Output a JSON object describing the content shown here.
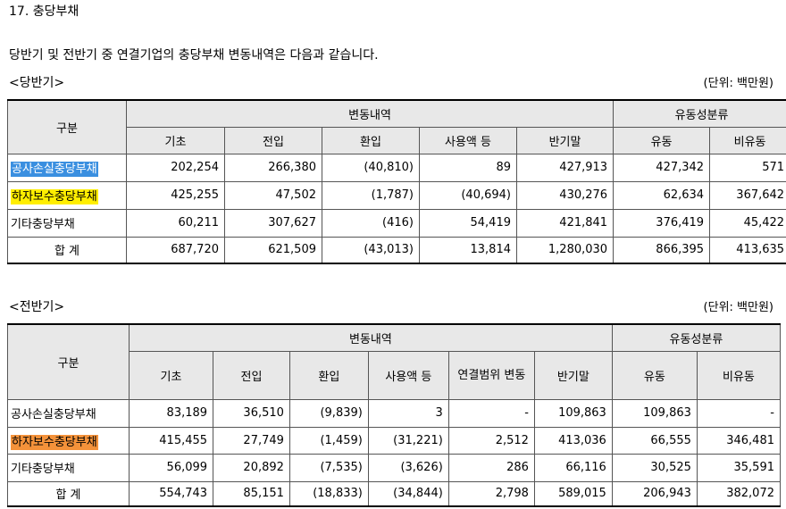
{
  "section_title": "17. 충당부채",
  "intro": "당반기 및 전반기 중 연결기업의 충당부채 변동내역은 다음과 같습니다.",
  "current": {
    "label": "<당반기>",
    "unit": "(단위: 백만원)",
    "headers": {
      "category": "구분",
      "changes": "변동내역",
      "class": "유동성분류",
      "cols": [
        "기초",
        "전입",
        "환입",
        "사용액 등",
        "반기말",
        "유동",
        "비유동"
      ]
    },
    "rows": [
      {
        "label": "공사손실충당부채",
        "cells": [
          "202,254",
          "266,380",
          "(40,810)",
          "89",
          "427,913",
          "427,342",
          "571"
        ]
      },
      {
        "label": "하자보수충당부채",
        "cells": [
          "425,255",
          "47,502",
          "(1,787)",
          "(40,694)",
          "430,276",
          "62,634",
          "367,642"
        ]
      },
      {
        "label": "기타충당부채",
        "cells": [
          "60,211",
          "307,627",
          "(416)",
          "54,419",
          "421,841",
          "376,419",
          "45,422"
        ]
      },
      {
        "label": "합 계",
        "cells": [
          "687,720",
          "621,509",
          "(43,013)",
          "13,814",
          "1,280,030",
          "866,395",
          "413,635"
        ]
      }
    ]
  },
  "previous": {
    "label": "<전반기>",
    "unit": "(단위: 백만원)",
    "headers": {
      "category": "구분",
      "changes": "변동내역",
      "class": "유동성분류",
      "cols": [
        "기초",
        "전입",
        "환입",
        "사용액 등",
        "연결범위 변동",
        "반기말",
        "유동",
        "비유동"
      ]
    },
    "rows": [
      {
        "label": "공사손실충당부채",
        "cells": [
          "83,189",
          "36,510",
          "(9,839)",
          "3",
          "-",
          "109,863",
          "109,863",
          "-"
        ]
      },
      {
        "label": "하자보수충당부채",
        "cells": [
          "415,455",
          "27,749",
          "(1,459)",
          "(31,221)",
          "2,512",
          "413,036",
          "66,555",
          "346,481"
        ]
      },
      {
        "label": "기타충당부채",
        "cells": [
          "56,099",
          "20,892",
          "(7,535)",
          "(3,626)",
          "286",
          "66,116",
          "30,525",
          "35,591"
        ]
      },
      {
        "label": "합 계",
        "cells": [
          "554,743",
          "85,151",
          "(18,833)",
          "(34,844)",
          "2,798",
          "589,015",
          "206,943",
          "382,072"
        ]
      }
    ]
  },
  "highlight_colors": {
    "blue": "#3a8fe0",
    "yellow": "#ffee00",
    "orange": "#f4923a"
  }
}
